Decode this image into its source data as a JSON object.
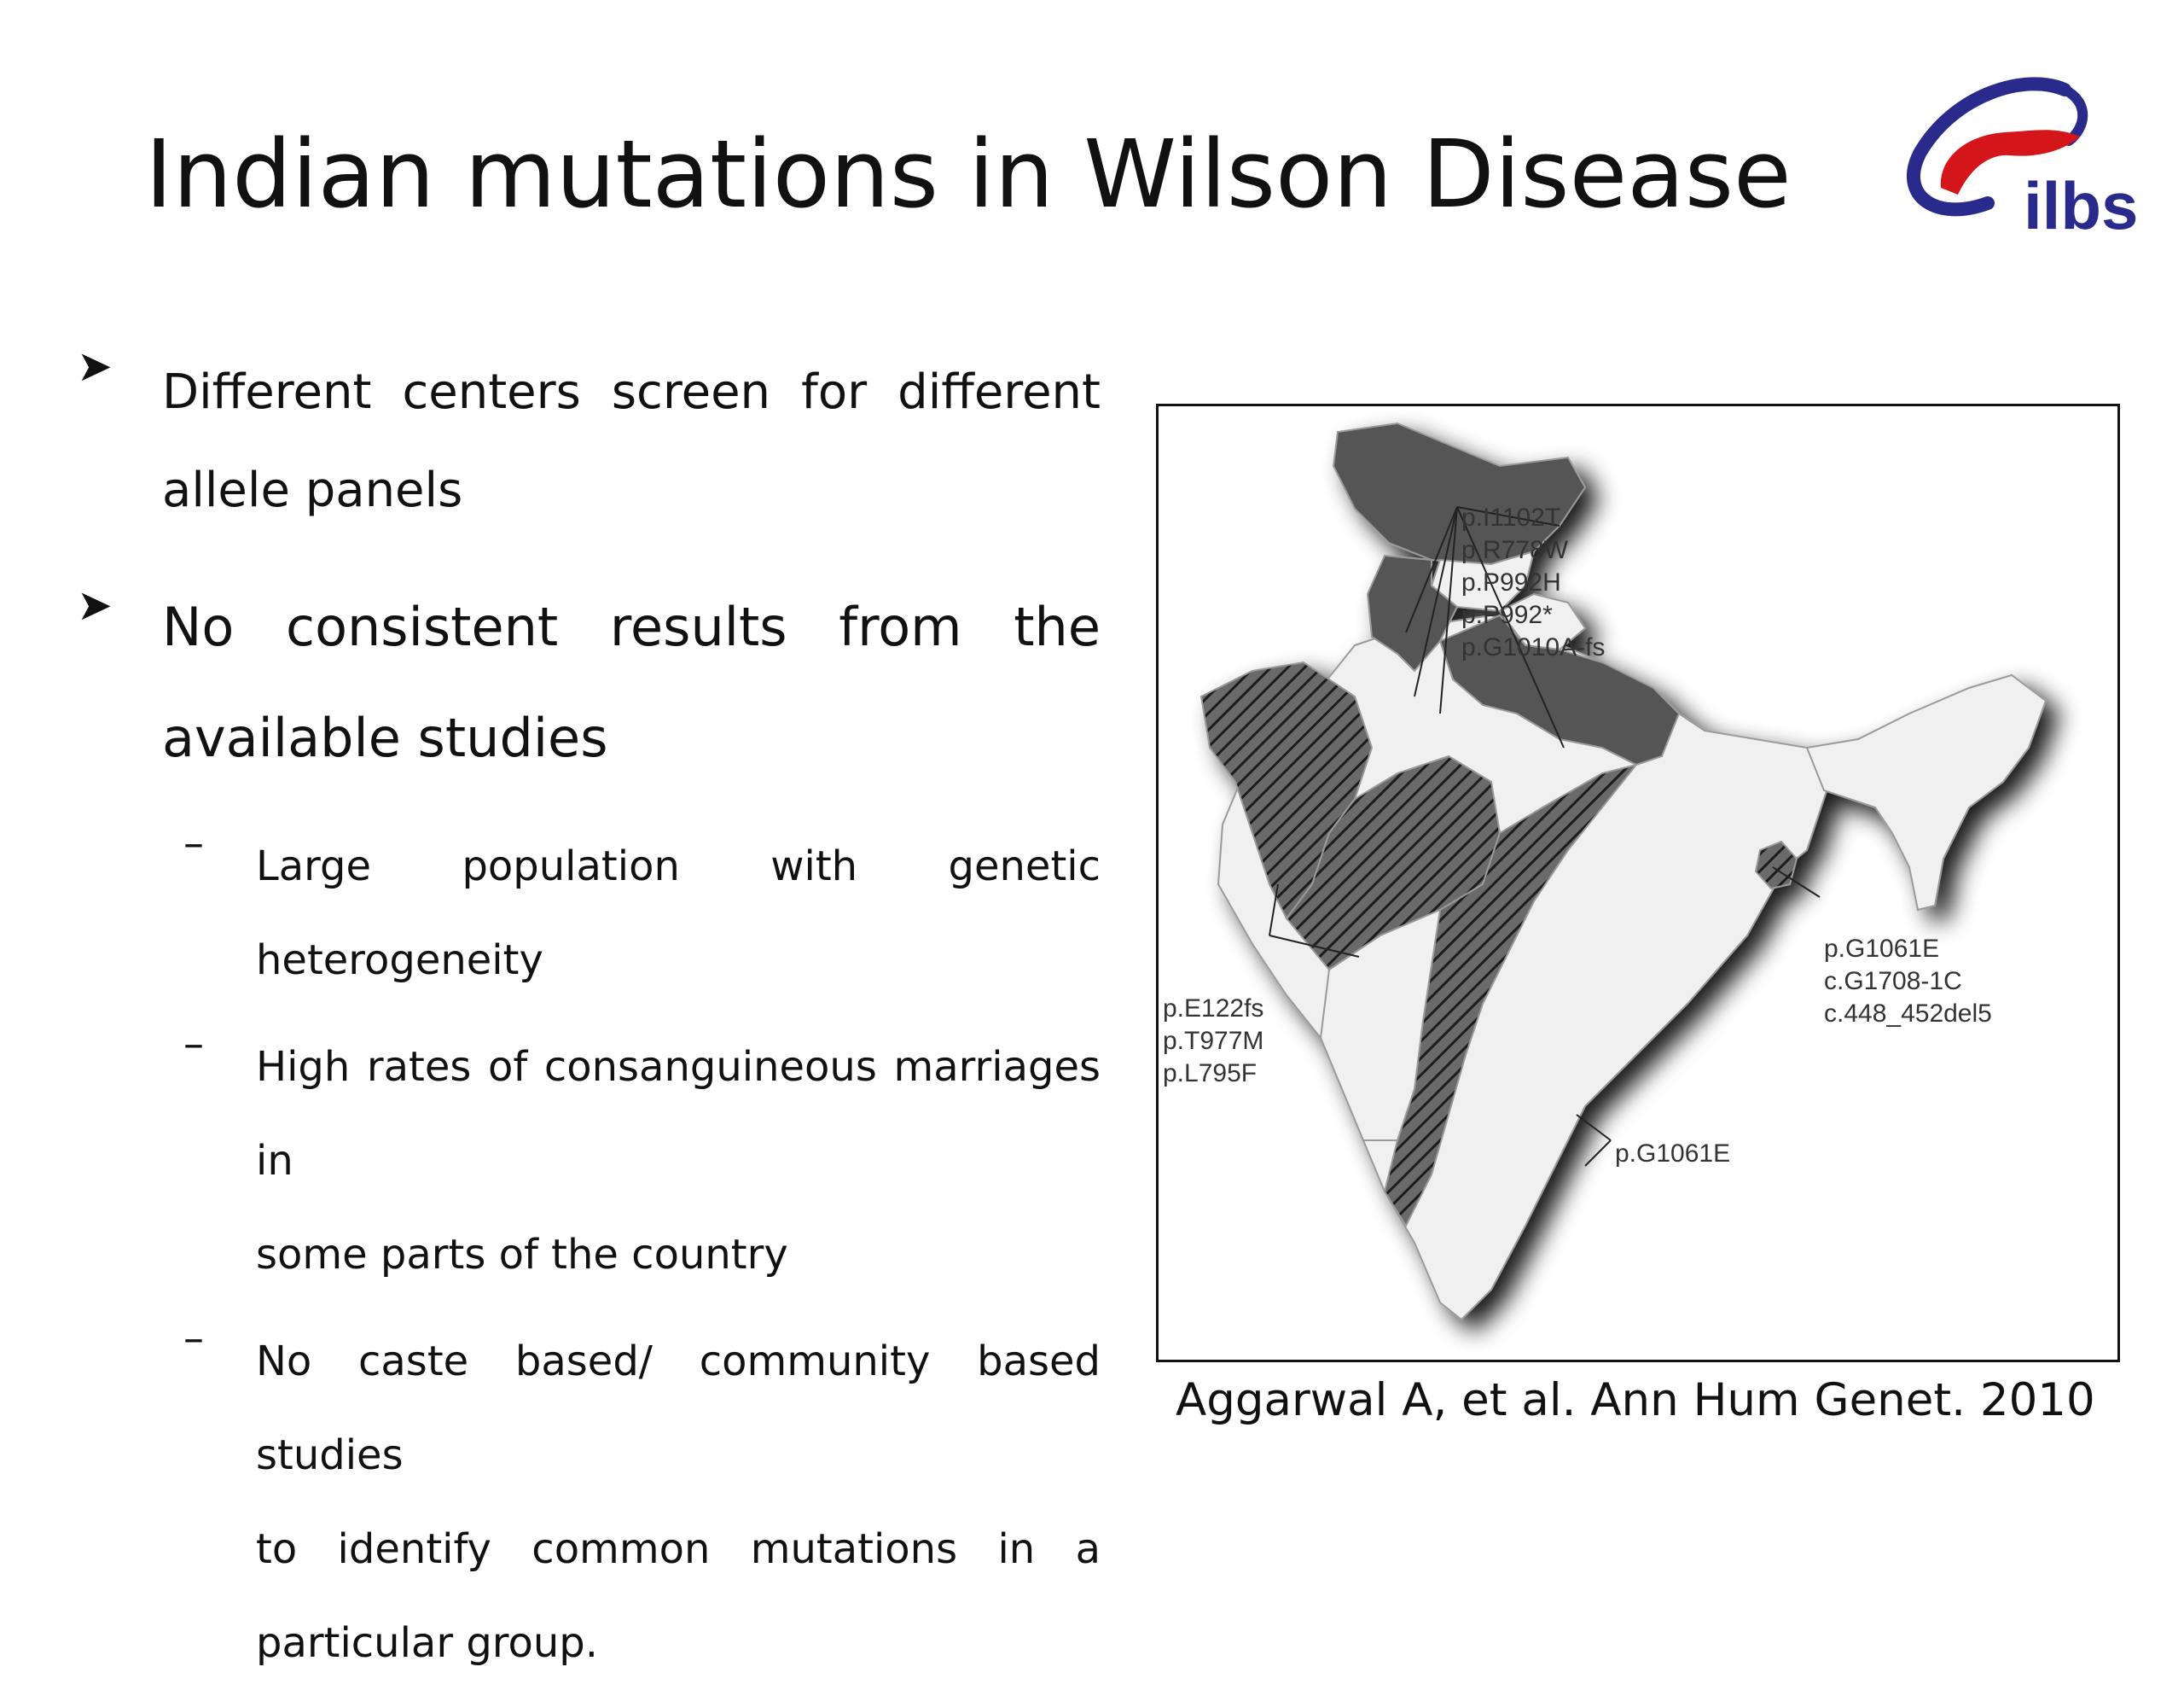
{
  "slide": {
    "title": "Indian mutations in Wilson Disease",
    "logo_text": "ilbs",
    "bullets": [
      {
        "line1": "Different centers screen for different",
        "line2": "allele panels"
      },
      {
        "line1": "No consistent results from the",
        "line2": "available studies"
      }
    ],
    "sub_bullets": [
      {
        "line1": "Large population with genetic",
        "line2": "heterogeneity"
      },
      {
        "line1": "High rates of consanguineous marriages in",
        "line2": "some parts of the country"
      },
      {
        "line1": "No caste based/ community based studies",
        "line2": "to identify common mutations in a",
        "line3": "particular group."
      }
    ],
    "citation": "Aggarwal A, et al. Ann Hum Genet. 2010"
  },
  "map": {
    "north_mutations": [
      "p.I1102T",
      "p.R778W",
      "p.P992H",
      "p.P992*",
      "p.G1010A-fs"
    ],
    "east_mutations": [
      "p.G1061E",
      "c.G1708-1C",
      "c.448_452del5"
    ],
    "west_mutations": [
      "p.E122fs",
      "p.T977M",
      "p.L795F"
    ],
    "south_mutations": [
      "p.G1061E"
    ]
  },
  "colors": {
    "logo_blue": "#2a2a8c",
    "logo_red": "#d4161b",
    "region_dark": "#555555",
    "region_light": "#f0f0f0"
  }
}
